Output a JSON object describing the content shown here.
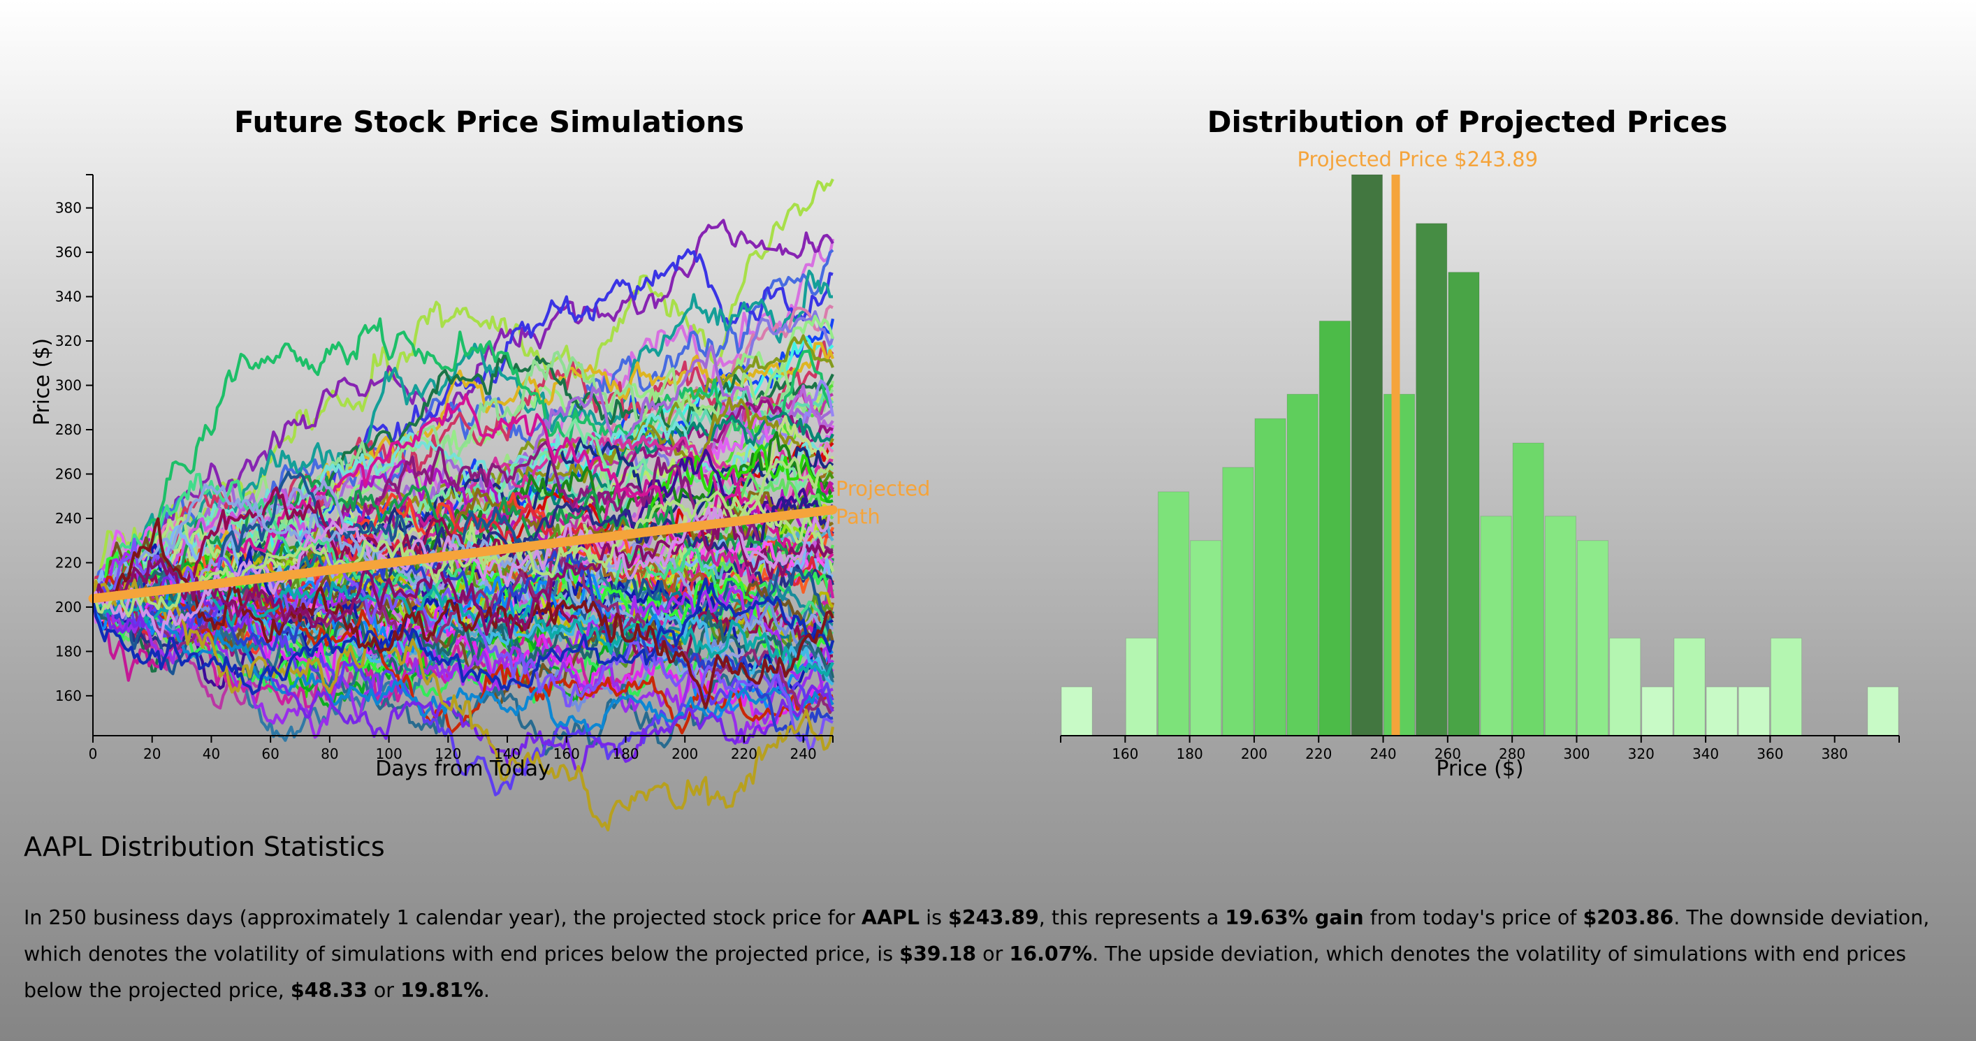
{
  "chart_data": [
    {
      "type": "line",
      "title": "Future Stock Price Simulations",
      "xlabel": "Days from Today",
      "ylabel": "Price ($)",
      "xlim": [
        0,
        250
      ],
      "ylim": [
        142,
        395
      ],
      "x_ticks": [
        0,
        20,
        40,
        60,
        80,
        100,
        120,
        140,
        160,
        180,
        200,
        220,
        240
      ],
      "y_ticks": [
        160,
        180,
        200,
        220,
        240,
        260,
        280,
        300,
        320,
        340,
        360,
        380
      ],
      "start_price": 203.86,
      "num_simulations": 100,
      "simulated_end_prices": [
        393,
        366,
        364,
        361,
        350,
        340,
        335,
        330,
        322,
        321,
        318,
        315,
        312,
        308,
        305,
        302,
        300,
        298,
        296,
        294,
        292,
        290,
        288,
        286,
        284,
        282,
        280,
        278,
        276,
        274,
        272,
        270,
        268,
        266,
        264,
        262,
        260,
        258,
        256,
        254,
        252,
        250,
        248,
        246,
        244,
        242,
        240,
        238,
        236,
        234,
        232,
        230,
        228,
        226,
        224,
        222,
        220,
        218,
        216,
        214,
        212,
        210,
        208,
        206,
        204,
        202,
        200,
        198,
        196,
        194,
        192,
        190,
        188,
        186,
        184,
        182,
        180,
        178,
        176,
        174,
        172,
        170,
        168,
        166,
        165,
        163,
        160,
        158,
        156,
        155,
        153,
        150,
        148,
        146,
        175,
        185,
        195,
        225,
        245,
        262
      ],
      "projected_path": {
        "name": "Projected Path",
        "x": [
          0,
          250
        ],
        "y": [
          203.86,
          243.89
        ],
        "color": "#f5a43b"
      },
      "grid": false
    },
    {
      "type": "bar",
      "title": "Distribution of Projected Prices",
      "xlabel": "Price ($)",
      "x_ticks": [
        160,
        180,
        200,
        220,
        240,
        260,
        280,
        300,
        320,
        340,
        360,
        380
      ],
      "xlim": [
        140,
        400
      ],
      "bin_width": 10,
      "bins": [
        {
          "x0": 140,
          "x1": 150,
          "count": 1
        },
        {
          "x0": 160,
          "x1": 170,
          "count": 2
        },
        {
          "x0": 170,
          "x1": 180,
          "count": 5
        },
        {
          "x0": 180,
          "x1": 190,
          "count": 4
        },
        {
          "x0": 190,
          "x1": 200,
          "count": 5.5
        },
        {
          "x0": 200,
          "x1": 210,
          "count": 6.5
        },
        {
          "x0": 210,
          "x1": 220,
          "count": 7
        },
        {
          "x0": 220,
          "x1": 230,
          "count": 8.5
        },
        {
          "x0": 230,
          "x1": 240,
          "count": 11.5
        },
        {
          "x0": 240,
          "x1": 250,
          "count": 7
        },
        {
          "x0": 250,
          "x1": 260,
          "count": 10.5
        },
        {
          "x0": 260,
          "x1": 270,
          "count": 9.5
        },
        {
          "x0": 270,
          "x1": 280,
          "count": 4.5
        },
        {
          "x0": 280,
          "x1": 290,
          "count": 6
        },
        {
          "x0": 290,
          "x1": 300,
          "count": 4.5
        },
        {
          "x0": 300,
          "x1": 310,
          "count": 4
        },
        {
          "x0": 310,
          "x1": 320,
          "count": 2
        },
        {
          "x0": 320,
          "x1": 330,
          "count": 1
        },
        {
          "x0": 330,
          "x1": 340,
          "count": 2
        },
        {
          "x0": 340,
          "x1": 350,
          "count": 1
        },
        {
          "x0": 350,
          "x1": 360,
          "count": 1
        },
        {
          "x0": 360,
          "x1": 370,
          "count": 2
        },
        {
          "x0": 390,
          "x1": 400,
          "count": 1
        }
      ],
      "projected_price": 243.89,
      "projected_label": "Projected Price $243.89",
      "projected_color": "#f5a43b"
    }
  ],
  "stats": {
    "title": "AAPL Distribution Statistics",
    "p1": "In 250 business days (approximately 1 calendar year), the projected stock price for ",
    "ticker": "AAPL",
    "p2": " is ",
    "projected_price": "$243.89",
    "p3": ", this represents a ",
    "gain": "19.63% gain",
    "p4": " from today's price of ",
    "current_price": "$203.86",
    "p5": ". The downside deviation, which denotes the volatility of simulations with end prices below the projected price, is ",
    "down_dollars": "$39.18",
    "p6": " or ",
    "down_pct": "16.07%",
    "p7": ". The upside deviation, which denotes the volatility of simulations with end prices below the projected price, ",
    "up_dollars": "$48.33",
    "p8": " or ",
    "up_pct": "19.81%",
    "p9": "."
  }
}
